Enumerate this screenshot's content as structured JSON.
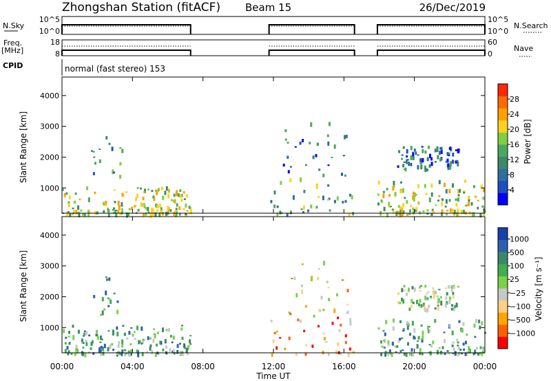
{
  "header": {
    "station": "Zhongshan Station (fitACF)",
    "beam": "Beam 15",
    "date": "26/Dec/2019"
  },
  "colors": {
    "frame": "#000000",
    "background": "#ffffff",
    "power_scale": [
      "#0000ff",
      "#1f4fbf",
      "#2f6f9f",
      "#3a8a6a",
      "#4aa860",
      "#7fcf40",
      "#ffd21f",
      "#ffa000",
      "#ff6a00",
      "#ff2a00"
    ],
    "velocity_scale": [
      "#ff0000",
      "#ff6000",
      "#ffa500",
      "#ffd080",
      "#c8c8c8",
      "#7ad14a",
      "#3fae4f",
      "#3a8a6a",
      "#2f5fb0",
      "#1a3fa8"
    ]
  },
  "chart_data": [
    {
      "type": "line",
      "panel": "N.Sky / N.Search",
      "left_label": "N.Sky",
      "right_label": "N.Search",
      "left_ticks": [
        "10^5",
        "10^0"
      ],
      "right_ticks": [
        "10^5",
        "10^0"
      ],
      "x_range_hours": [
        0,
        24
      ],
      "segments_hours": [
        [
          0.0,
          7.3
        ],
        [
          11.75,
          16.6
        ],
        [
          17.9,
          24.0
        ]
      ]
    },
    {
      "type": "line",
      "panel": "Freq / Nave",
      "left_label": "Freq.",
      "left_unit": "[MHz]",
      "right_label": "Nave",
      "left_ticks": [
        "18",
        "8"
      ],
      "right_ticks": [
        "60",
        "0"
      ],
      "segments_hours": [
        [
          0.0,
          7.3
        ],
        [
          11.75,
          16.6
        ],
        [
          17.9,
          24.0
        ]
      ]
    },
    {
      "type": "table",
      "panel": "CPID",
      "label": "CPID",
      "value": "normal (fast stereo) 153"
    },
    {
      "type": "heatmap",
      "panel": "Power",
      "ylabel": "Slant Range [km]",
      "colorbar_label": "Power [dB]",
      "yticks": [
        1000,
        2000,
        3000,
        4000
      ],
      "ylim": [
        180,
        4600
      ],
      "colorbar_ticks": [
        4,
        8,
        12,
        16,
        20,
        24,
        28
      ],
      "colorbar_range": [
        0,
        32
      ],
      "echo_regions": [
        {
          "t": [
            0.0,
            7.3
          ],
          "r": [
            180,
            1100
          ],
          "level": 16
        },
        {
          "t": [
            1.5,
            3.6
          ],
          "r": [
            1400,
            2700
          ],
          "level": 10
        },
        {
          "t": [
            11.75,
            16.6
          ],
          "r": [
            180,
            1400
          ],
          "level": 14
        },
        {
          "t": [
            12.5,
            16.3
          ],
          "r": [
            1400,
            3200
          ],
          "level": 8
        },
        {
          "t": [
            17.9,
            24.0
          ],
          "r": [
            180,
            1300
          ],
          "level": 16
        },
        {
          "t": [
            19.0,
            22.5
          ],
          "r": [
            1600,
            2400
          ],
          "level": 6
        }
      ]
    },
    {
      "type": "heatmap",
      "panel": "Velocity",
      "ylabel": "Slant Range [km]",
      "colorbar_label": "Velocity [m s⁻¹]",
      "yticks": [
        1000,
        2000,
        3000,
        4000
      ],
      "ylim": [
        180,
        4600
      ],
      "colorbar_ticks": [
        "1000",
        "500",
        "100",
        "25",
        "−25",
        "−100",
        "−500",
        "−1000"
      ],
      "echo_regions": [
        {
          "t": [
            0.0,
            7.3
          ],
          "r": [
            180,
            1100
          ],
          "level": 100
        },
        {
          "t": [
            1.5,
            3.6
          ],
          "r": [
            1400,
            2700
          ],
          "level": 500
        },
        {
          "t": [
            11.75,
            16.6
          ],
          "r": [
            180,
            1400
          ],
          "level": -100
        },
        {
          "t": [
            12.5,
            16.3
          ],
          "r": [
            1400,
            3200
          ],
          "level": -25
        },
        {
          "t": [
            17.9,
            24.0
          ],
          "r": [
            180,
            1300
          ],
          "level": 100
        },
        {
          "t": [
            19.0,
            22.5
          ],
          "r": [
            1600,
            2400
          ],
          "level": 25
        }
      ]
    }
  ],
  "xaxis": {
    "label": "Time UT",
    "ticks": [
      "00:00",
      "04:00",
      "08:00",
      "12:00",
      "16:00",
      "20:00",
      "00:00"
    ],
    "range_hours": [
      0,
      24
    ]
  }
}
